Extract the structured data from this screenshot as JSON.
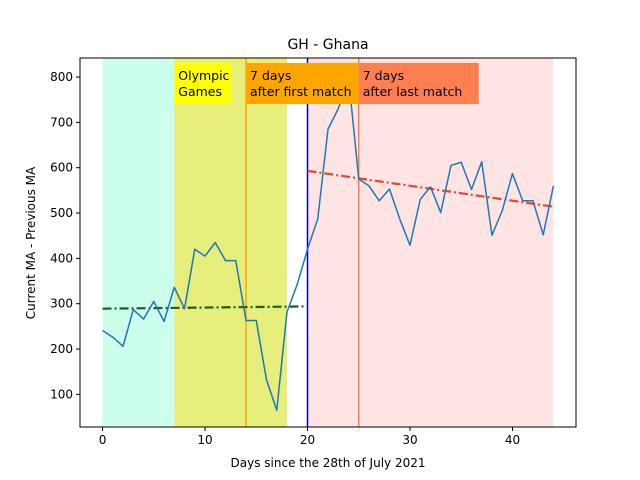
{
  "chart_data": {
    "type": "line",
    "title": "GH - Ghana",
    "xlabel": "Days since the 28th of July 2021",
    "ylabel": "Current MA - Previous MA",
    "xlim": [
      -2.2,
      46.2
    ],
    "ylim": [
      28,
      842
    ],
    "xticks": [
      0,
      10,
      20,
      30,
      40
    ],
    "yticks": [
      100,
      200,
      300,
      400,
      500,
      600,
      700,
      800
    ],
    "series": [
      {
        "color": "#1f77b4",
        "x": [
          0,
          1,
          2,
          3,
          4,
          5,
          6,
          7,
          8,
          9,
          10,
          11,
          12,
          13,
          14,
          15,
          16,
          17,
          18,
          19,
          20,
          21,
          22,
          23,
          24,
          25,
          26,
          27,
          28,
          29,
          30,
          31,
          32,
          33,
          34,
          35,
          36,
          37,
          38,
          39,
          40,
          41,
          42,
          43,
          44
        ],
        "y": [
          241,
          226,
          206,
          287,
          266,
          305,
          261,
          336,
          289,
          420,
          405,
          435,
          395,
          395,
          263,
          263,
          132,
          65,
          282,
          343,
          420,
          487,
          685,
          730,
          800,
          575,
          560,
          527,
          553,
          487,
          429,
          530,
          558,
          501,
          605,
          612,
          552,
          613,
          451,
          505,
          587,
          527,
          527,
          452,
          560
        ]
      }
    ],
    "regions": [
      {
        "x0": 0,
        "x1": 7,
        "color": "#ccffeb"
      },
      {
        "x0": 7,
        "x1": 18,
        "color": "#e6ee7c"
      },
      {
        "x0": 20,
        "x1": 44,
        "color": "#ffe4e4"
      }
    ],
    "vlines": [
      {
        "x": 14,
        "color": "#ffa500"
      },
      {
        "x": 20,
        "color": "#0000cc"
      },
      {
        "x": 25,
        "color": "#ff7f50"
      }
    ],
    "trendlines": [
      {
        "x0": 0,
        "y0": 289,
        "x1": 20,
        "y1": 294,
        "color": "#1b5e20"
      },
      {
        "x0": 20,
        "y0": 593,
        "x1": 44,
        "y1": 514,
        "color": "#e8452c"
      }
    ],
    "annotations": [
      {
        "lines": [
          "Olympic",
          "Games"
        ],
        "x": 7,
        "bg": "#ffff00"
      },
      {
        "lines": [
          "7 days",
          "after first match"
        ],
        "x": 14,
        "bg": "#ffa500"
      },
      {
        "lines": [
          "7 days",
          "after last match"
        ],
        "x": 25,
        "bg": "#ff7f50"
      }
    ]
  }
}
